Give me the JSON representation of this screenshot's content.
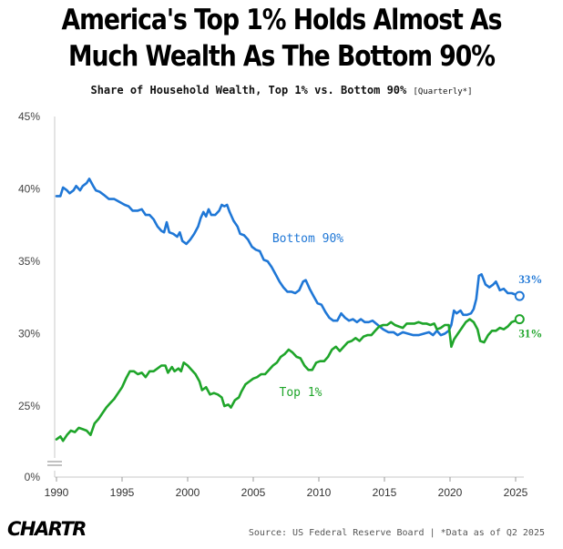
{
  "title": "America's Top 1% Holds Almost As Much Wealth As The Bottom 90%",
  "subtitle": "Share of Household Wealth, Top 1% vs. Bottom 90%",
  "subtitle_note": "[Quarterly*]",
  "source": "Source: US Federal Reserve Board | *Data as of Q2 2025",
  "logo": "CHARTR",
  "chart_data": {
    "type": "line",
    "xlabel": "",
    "ylabel": "",
    "xlim": [
      1990,
      2025.5
    ],
    "ylim": [
      0,
      45
    ],
    "y_axis_break": [
      0,
      22
    ],
    "x_ticks": [
      1990,
      1995,
      2000,
      2005,
      2010,
      2015,
      2020,
      2025
    ],
    "y_ticks": [
      {
        "value": 45,
        "label": "45%"
      },
      {
        "value": 40,
        "label": "40%"
      },
      {
        "value": 35,
        "label": "35%"
      },
      {
        "value": 30,
        "label": "30%"
      },
      {
        "value": 25,
        "label": "25%"
      },
      {
        "value": 0,
        "label": "0%"
      }
    ],
    "legend": "inline labels",
    "grid": false,
    "series": [
      {
        "name": "Bottom 90%",
        "color": "#1f77d6",
        "end_label": "33%",
        "points": [
          [
            1990.0,
            39.5
          ],
          [
            1990.3,
            39.5
          ],
          [
            1990.5,
            40.1
          ],
          [
            1990.8,
            39.9
          ],
          [
            1991.0,
            39.7
          ],
          [
            1991.3,
            39.9
          ],
          [
            1991.5,
            40.2
          ],
          [
            1991.8,
            39.9
          ],
          [
            1992.0,
            40.2
          ],
          [
            1992.3,
            40.4
          ],
          [
            1992.5,
            40.7
          ],
          [
            1992.8,
            40.2
          ],
          [
            1993.0,
            39.9
          ],
          [
            1993.3,
            39.8
          ],
          [
            1993.6,
            39.6
          ],
          [
            1994.0,
            39.3
          ],
          [
            1994.4,
            39.3
          ],
          [
            1994.8,
            39.1
          ],
          [
            1995.2,
            38.9
          ],
          [
            1995.5,
            38.8
          ],
          [
            1995.8,
            38.5
          ],
          [
            1996.2,
            38.5
          ],
          [
            1996.5,
            38.6
          ],
          [
            1996.8,
            38.2
          ],
          [
            1997.1,
            38.2
          ],
          [
            1997.4,
            37.9
          ],
          [
            1997.7,
            37.4
          ],
          [
            1998.0,
            37.1
          ],
          [
            1998.2,
            37.0
          ],
          [
            1998.4,
            37.7
          ],
          [
            1998.6,
            37.0
          ],
          [
            1998.9,
            36.9
          ],
          [
            1999.2,
            36.7
          ],
          [
            1999.4,
            37.0
          ],
          [
            1999.6,
            36.4
          ],
          [
            1999.9,
            36.2
          ],
          [
            2000.2,
            36.5
          ],
          [
            2000.5,
            36.9
          ],
          [
            2000.8,
            37.4
          ],
          [
            2001.0,
            38.0
          ],
          [
            2001.2,
            38.4
          ],
          [
            2001.4,
            38.1
          ],
          [
            2001.6,
            38.6
          ],
          [
            2001.8,
            38.2
          ],
          [
            2002.1,
            38.2
          ],
          [
            2002.4,
            38.5
          ],
          [
            2002.6,
            38.9
          ],
          [
            2002.8,
            38.8
          ],
          [
            2003.0,
            38.9
          ],
          [
            2003.2,
            38.4
          ],
          [
            2003.5,
            37.8
          ],
          [
            2003.8,
            37.4
          ],
          [
            2004.0,
            36.9
          ],
          [
            2004.3,
            36.8
          ],
          [
            2004.6,
            36.5
          ],
          [
            2004.9,
            36.0
          ],
          [
            2005.2,
            35.8
          ],
          [
            2005.5,
            35.7
          ],
          [
            2005.8,
            35.1
          ],
          [
            2006.1,
            35.0
          ],
          [
            2006.4,
            34.6
          ],
          [
            2006.7,
            34.1
          ],
          [
            2007.0,
            33.6
          ],
          [
            2007.3,
            33.2
          ],
          [
            2007.6,
            32.9
          ],
          [
            2007.9,
            32.9
          ],
          [
            2008.2,
            32.8
          ],
          [
            2008.5,
            33.0
          ],
          [
            2008.8,
            33.6
          ],
          [
            2009.0,
            33.7
          ],
          [
            2009.3,
            33.1
          ],
          [
            2009.6,
            32.6
          ],
          [
            2009.9,
            32.1
          ],
          [
            2010.2,
            32.0
          ],
          [
            2010.5,
            31.5
          ],
          [
            2010.8,
            31.1
          ],
          [
            2011.1,
            30.9
          ],
          [
            2011.4,
            30.9
          ],
          [
            2011.7,
            31.4
          ],
          [
            2012.0,
            31.1
          ],
          [
            2012.3,
            30.9
          ],
          [
            2012.6,
            31.0
          ],
          [
            2012.9,
            30.8
          ],
          [
            2013.2,
            31.0
          ],
          [
            2013.5,
            30.8
          ],
          [
            2013.8,
            30.8
          ],
          [
            2014.1,
            30.9
          ],
          [
            2014.5,
            30.6
          ],
          [
            2014.9,
            30.3
          ],
          [
            2015.3,
            30.1
          ],
          [
            2015.7,
            30.1
          ],
          [
            2016.0,
            29.9
          ],
          [
            2016.4,
            30.1
          ],
          [
            2016.8,
            30.0
          ],
          [
            2017.2,
            29.9
          ],
          [
            2017.6,
            29.9
          ],
          [
            2018.0,
            30.0
          ],
          [
            2018.4,
            30.1
          ],
          [
            2018.7,
            29.9
          ],
          [
            2019.0,
            30.2
          ],
          [
            2019.3,
            29.9
          ],
          [
            2019.6,
            30.0
          ],
          [
            2019.9,
            30.2
          ],
          [
            2020.1,
            30.6
          ],
          [
            2020.3,
            31.6
          ],
          [
            2020.5,
            31.4
          ],
          [
            2020.8,
            31.6
          ],
          [
            2021.0,
            31.3
          ],
          [
            2021.3,
            31.3
          ],
          [
            2021.6,
            31.4
          ],
          [
            2021.8,
            31.7
          ],
          [
            2022.0,
            32.4
          ],
          [
            2022.2,
            34.0
          ],
          [
            2022.4,
            34.1
          ],
          [
            2022.7,
            33.4
          ],
          [
            2023.0,
            33.2
          ],
          [
            2023.3,
            33.4
          ],
          [
            2023.5,
            33.6
          ],
          [
            2023.8,
            33.0
          ],
          [
            2024.1,
            33.1
          ],
          [
            2024.4,
            32.8
          ],
          [
            2024.7,
            32.8
          ],
          [
            2025.0,
            32.7
          ],
          [
            2025.3,
            32.6
          ]
        ]
      },
      {
        "name": "Top 1%",
        "color": "#1fa52a",
        "end_label": "31%",
        "points": [
          [
            1990.0,
            22.7
          ],
          [
            1990.3,
            22.9
          ],
          [
            1990.5,
            22.6
          ],
          [
            1990.8,
            23.0
          ],
          [
            1991.1,
            23.3
          ],
          [
            1991.4,
            23.2
          ],
          [
            1991.7,
            23.5
          ],
          [
            1992.0,
            23.4
          ],
          [
            1992.3,
            23.3
          ],
          [
            1992.6,
            23.0
          ],
          [
            1992.9,
            23.8
          ],
          [
            1993.2,
            24.1
          ],
          [
            1993.5,
            24.5
          ],
          [
            1993.8,
            24.9
          ],
          [
            1994.1,
            25.2
          ],
          [
            1994.4,
            25.5
          ],
          [
            1994.7,
            25.9
          ],
          [
            1995.0,
            26.3
          ],
          [
            1995.3,
            26.9
          ],
          [
            1995.6,
            27.4
          ],
          [
            1995.9,
            27.4
          ],
          [
            1996.2,
            27.2
          ],
          [
            1996.5,
            27.3
          ],
          [
            1996.8,
            27.0
          ],
          [
            1997.1,
            27.4
          ],
          [
            1997.4,
            27.4
          ],
          [
            1997.7,
            27.6
          ],
          [
            1998.0,
            27.8
          ],
          [
            1998.3,
            27.8
          ],
          [
            1998.5,
            27.3
          ],
          [
            1998.8,
            27.7
          ],
          [
            1999.0,
            27.4
          ],
          [
            1999.3,
            27.6
          ],
          [
            1999.5,
            27.4
          ],
          [
            1999.7,
            28.0
          ],
          [
            2000.0,
            27.8
          ],
          [
            2000.3,
            27.5
          ],
          [
            2000.6,
            27.2
          ],
          [
            2000.9,
            26.7
          ],
          [
            2001.1,
            26.1
          ],
          [
            2001.4,
            26.3
          ],
          [
            2001.7,
            25.8
          ],
          [
            2002.0,
            25.9
          ],
          [
            2002.3,
            25.8
          ],
          [
            2002.6,
            25.6
          ],
          [
            2002.8,
            25.0
          ],
          [
            2003.1,
            25.1
          ],
          [
            2003.3,
            24.9
          ],
          [
            2003.6,
            25.4
          ],
          [
            2003.9,
            25.6
          ],
          [
            2004.1,
            26.0
          ],
          [
            2004.4,
            26.5
          ],
          [
            2004.7,
            26.7
          ],
          [
            2005.0,
            26.9
          ],
          [
            2005.3,
            27.0
          ],
          [
            2005.6,
            27.2
          ],
          [
            2005.9,
            27.2
          ],
          [
            2006.2,
            27.5
          ],
          [
            2006.5,
            27.8
          ],
          [
            2006.8,
            28.0
          ],
          [
            2007.1,
            28.4
          ],
          [
            2007.4,
            28.6
          ],
          [
            2007.7,
            28.9
          ],
          [
            2008.0,
            28.7
          ],
          [
            2008.3,
            28.4
          ],
          [
            2008.6,
            28.3
          ],
          [
            2008.9,
            27.8
          ],
          [
            2009.2,
            27.5
          ],
          [
            2009.5,
            27.5
          ],
          [
            2009.8,
            28.0
          ],
          [
            2010.1,
            28.1
          ],
          [
            2010.4,
            28.1
          ],
          [
            2010.7,
            28.4
          ],
          [
            2011.0,
            28.9
          ],
          [
            2011.3,
            29.1
          ],
          [
            2011.6,
            28.8
          ],
          [
            2011.9,
            29.1
          ],
          [
            2012.2,
            29.4
          ],
          [
            2012.5,
            29.5
          ],
          [
            2012.8,
            29.7
          ],
          [
            2013.1,
            29.5
          ],
          [
            2013.4,
            29.8
          ],
          [
            2013.7,
            29.9
          ],
          [
            2014.0,
            29.9
          ],
          [
            2014.3,
            30.2
          ],
          [
            2014.6,
            30.5
          ],
          [
            2014.9,
            30.6
          ],
          [
            2015.2,
            30.6
          ],
          [
            2015.5,
            30.8
          ],
          [
            2015.8,
            30.6
          ],
          [
            2016.1,
            30.5
          ],
          [
            2016.4,
            30.4
          ],
          [
            2016.7,
            30.7
          ],
          [
            2017.0,
            30.7
          ],
          [
            2017.3,
            30.7
          ],
          [
            2017.6,
            30.8
          ],
          [
            2017.9,
            30.7
          ],
          [
            2018.2,
            30.7
          ],
          [
            2018.5,
            30.6
          ],
          [
            2018.8,
            30.7
          ],
          [
            2019.0,
            30.3
          ],
          [
            2019.3,
            30.4
          ],
          [
            2019.6,
            30.6
          ],
          [
            2019.9,
            30.6
          ],
          [
            2020.1,
            29.1
          ],
          [
            2020.3,
            29.6
          ],
          [
            2020.6,
            30.0
          ],
          [
            2020.9,
            30.4
          ],
          [
            2021.2,
            30.8
          ],
          [
            2021.5,
            31.0
          ],
          [
            2021.8,
            30.8
          ],
          [
            2022.1,
            30.3
          ],
          [
            2022.3,
            29.5
          ],
          [
            2022.6,
            29.4
          ],
          [
            2022.9,
            29.9
          ],
          [
            2023.2,
            30.2
          ],
          [
            2023.5,
            30.2
          ],
          [
            2023.8,
            30.4
          ],
          [
            2024.1,
            30.3
          ],
          [
            2024.4,
            30.5
          ],
          [
            2024.7,
            30.8
          ],
          [
            2025.0,
            30.9
          ],
          [
            2025.3,
            31.0
          ]
        ]
      }
    ]
  }
}
